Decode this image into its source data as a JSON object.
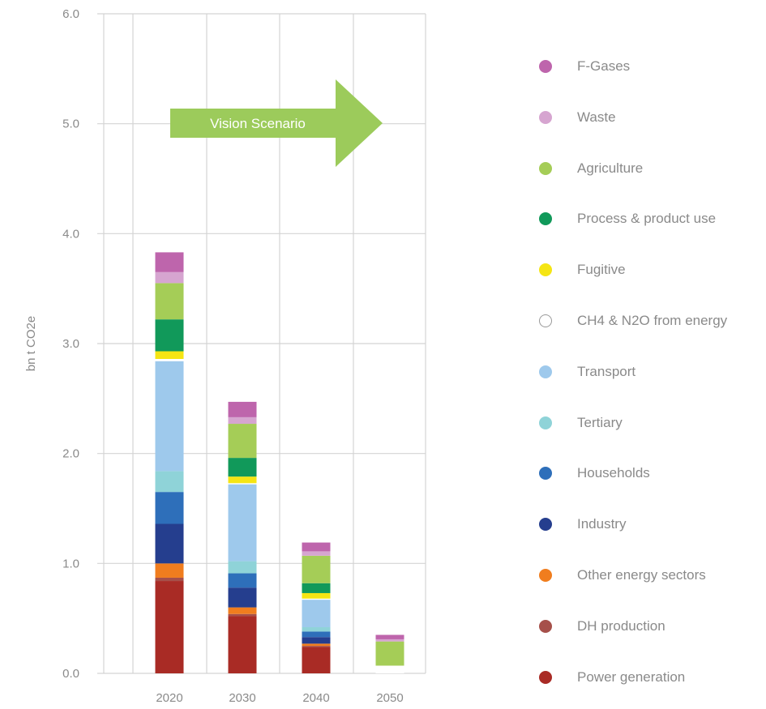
{
  "chart_data": {
    "type": "bar",
    "stacked": true,
    "categories": [
      "2020",
      "2030",
      "2040",
      "2050"
    ],
    "ylabel": "bn t CO2e",
    "ylim": [
      0,
      6
    ],
    "yticks": [
      "0.0",
      "1.0",
      "2.0",
      "3.0",
      "4.0",
      "5.0",
      "6.0"
    ],
    "grid": true,
    "legend_position": "right",
    "annotation": "Vision Scenario",
    "annotation_color": "#9ccb5b",
    "series": [
      {
        "name": "Power generation",
        "color": "#a92b25",
        "values": [
          0.84,
          0.52,
          0.24,
          0.0
        ]
      },
      {
        "name": "DH production",
        "color": "#a6504a",
        "values": [
          0.03,
          0.02,
          0.01,
          0.0
        ]
      },
      {
        "name": "Other energy sectors",
        "color": "#f07d1e",
        "values": [
          0.13,
          0.06,
          0.02,
          0.0
        ]
      },
      {
        "name": "Industry",
        "color": "#253e8e",
        "values": [
          0.36,
          0.18,
          0.06,
          0.0
        ]
      },
      {
        "name": "Households",
        "color": "#2e6fba",
        "values": [
          0.29,
          0.13,
          0.05,
          0.0
        ]
      },
      {
        "name": "Tertiary",
        "color": "#8fd3d8",
        "values": [
          0.19,
          0.11,
          0.04,
          0.0
        ]
      },
      {
        "name": "Transport",
        "color": "#9ec9ec",
        "values": [
          1.0,
          0.7,
          0.25,
          0.0
        ]
      },
      {
        "name": "CH4 & N2O from energy",
        "color": "#ffffff",
        "stroke": "#999999",
        "values": [
          0.02,
          0.01,
          0.01,
          0.07
        ]
      },
      {
        "name": "Fugitive",
        "color": "#f5e514",
        "values": [
          0.07,
          0.06,
          0.05,
          0.0
        ]
      },
      {
        "name": "Process & product use",
        "color": "#11995a",
        "values": [
          0.29,
          0.17,
          0.09,
          0.0
        ]
      },
      {
        "name": "Agriculture",
        "color": "#a5cd57",
        "values": [
          0.33,
          0.31,
          0.25,
          0.22
        ]
      },
      {
        "name": "Waste",
        "color": "#d6a5d0",
        "values": [
          0.1,
          0.06,
          0.04,
          0.02
        ]
      },
      {
        "name": "F-Gases",
        "color": "#be65ac",
        "values": [
          0.18,
          0.14,
          0.08,
          0.04
        ]
      }
    ]
  }
}
